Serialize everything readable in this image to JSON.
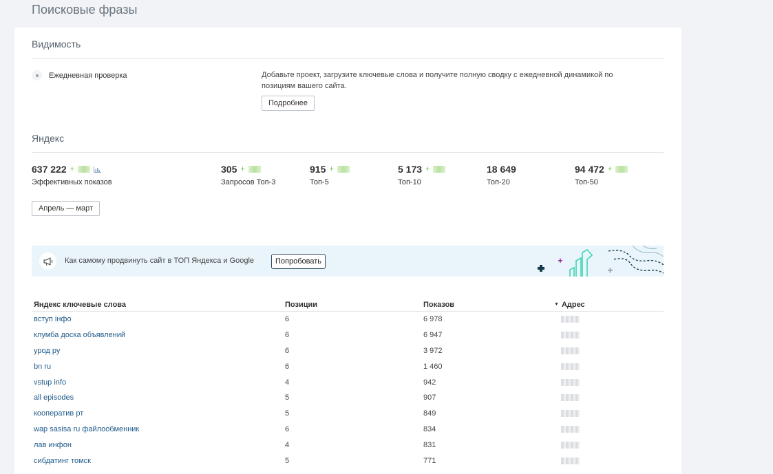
{
  "page": {
    "title": "Поисковые фразы"
  },
  "visibility": {
    "title": "Видимость",
    "daily_check_label": "Ежедневная проверка",
    "description": "Добавьте проект, загрузите ключевые слова и получите полную сводку с ежедневной динамикой по позициям вашего сайта.",
    "more_button": "Подробнее"
  },
  "yandex": {
    "title": "Яндекс",
    "stats": [
      {
        "value": "637 222",
        "plus": "+",
        "label": "Эффективных показов"
      },
      {
        "value": "305",
        "plus": "+",
        "label": "Запросов Топ-3"
      },
      {
        "value": "915",
        "plus": "+",
        "label": "Топ-5"
      },
      {
        "value": "5 173",
        "plus": "+",
        "label": "Топ-10"
      },
      {
        "value": "18 649",
        "plus": "",
        "label": "Топ-20"
      },
      {
        "value": "94 472",
        "plus": "+",
        "label": "Топ-50"
      }
    ],
    "period_button": "Апрель — март"
  },
  "banner": {
    "text": "Как самому продвинуть сайт в ТОП Яндекса и Google",
    "button": "Попробовать"
  },
  "table": {
    "headers": [
      "Яндекс ключевые слова",
      "Позиции",
      "Показов",
      "Адрес"
    ],
    "rows": [
      {
        "keyword": "вступ інфо",
        "position": "6",
        "shows": "6 978"
      },
      {
        "keyword": "клумба доска объявлений",
        "position": "6",
        "shows": "6 947"
      },
      {
        "keyword": "урод ру",
        "position": "6",
        "shows": "3 972"
      },
      {
        "keyword": "bn ru",
        "position": "6",
        "shows": "1 460"
      },
      {
        "keyword": "vstup info",
        "position": "4",
        "shows": "942"
      },
      {
        "keyword": "all episodes",
        "position": "5",
        "shows": "907"
      },
      {
        "keyword": "кооператив рт",
        "position": "5",
        "shows": "849"
      },
      {
        "keyword": "wap sasisa ru файлообменник",
        "position": "6",
        "shows": "834"
      },
      {
        "keyword": "лав инфон",
        "position": "4",
        "shows": "831"
      },
      {
        "keyword": "сибдатинг томск",
        "position": "5",
        "shows": "771"
      }
    ]
  },
  "colors": {
    "link": "#1f5a8a",
    "positive": "#6bc33d",
    "banner_bg": "#eaf5fb"
  }
}
